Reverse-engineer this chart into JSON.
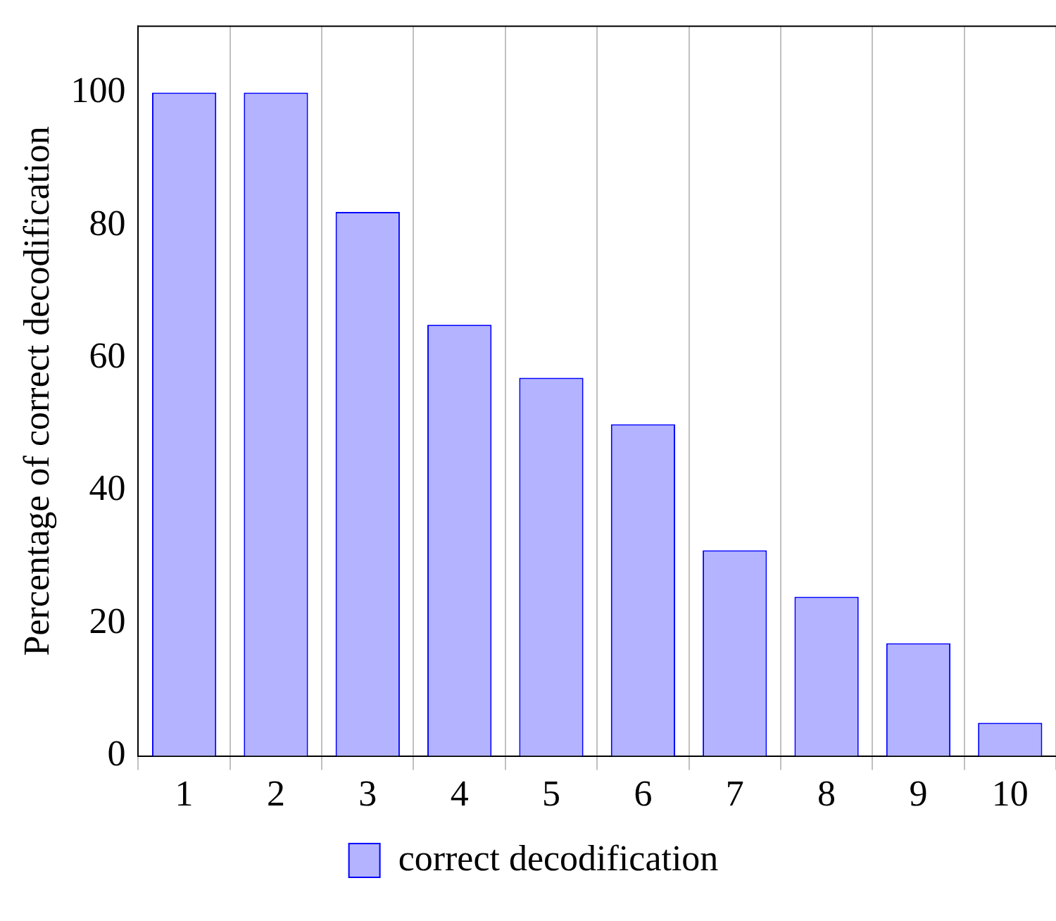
{
  "chart_data": {
    "type": "bar",
    "ylabel": "Percentage of correct decodification",
    "categories": [
      "1",
      "2",
      "3",
      "4",
      "5",
      "6",
      "7",
      "8",
      "9",
      "10"
    ],
    "series": [
      {
        "name": "correct decodification",
        "color": "#b3b3ff",
        "values": [
          100,
          100,
          82,
          65,
          57,
          50,
          31,
          24,
          17,
          5
        ]
      }
    ],
    "ylim": [
      0,
      110
    ],
    "yticks": [
      0,
      20,
      40,
      60,
      80,
      100
    ],
    "grid": "x",
    "legend": "bottom"
  }
}
